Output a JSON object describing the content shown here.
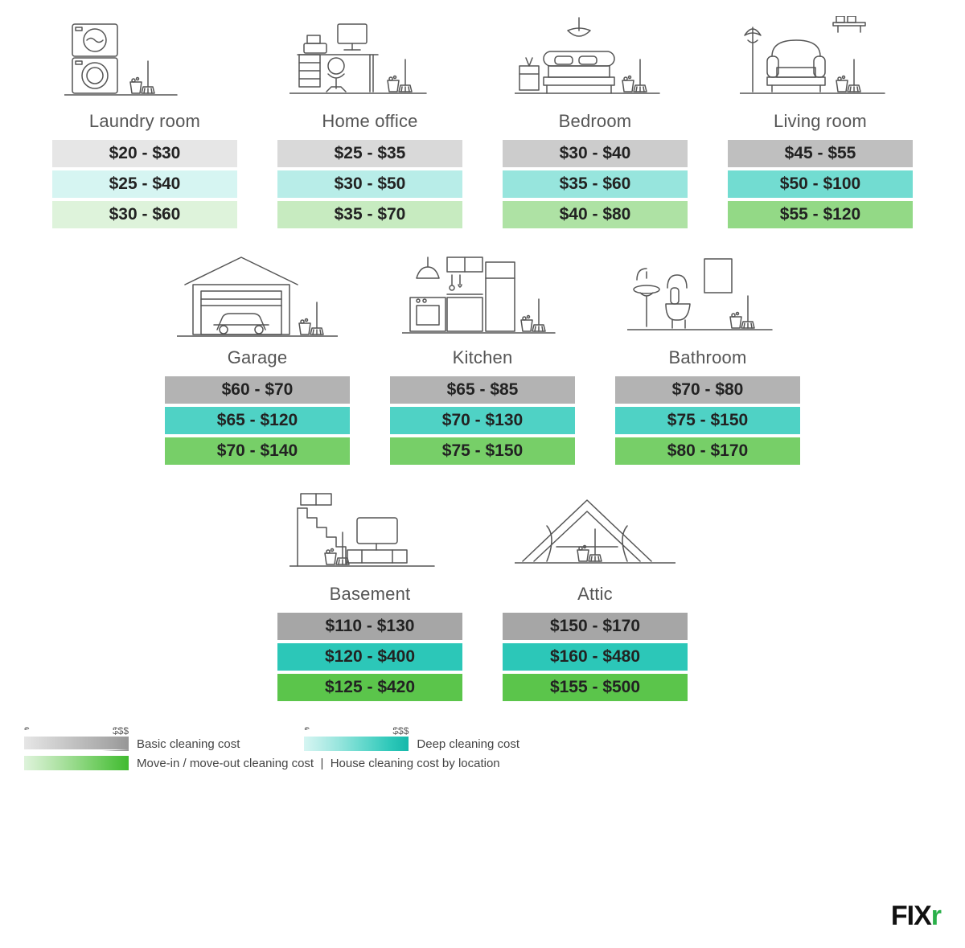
{
  "colors": {
    "basic_scale": [
      "#e6e6e6",
      "#d9d9d9",
      "#cccccc",
      "#bfbfbf",
      "#b3b3b3",
      "#a6a6a6",
      "#969696"
    ],
    "deep_scale": [
      "#d6f5f2",
      "#b8ede8",
      "#97e5dd",
      "#72dcd1",
      "#4fd2c5",
      "#2cc7b8",
      "#16b8aa"
    ],
    "movein_scale": [
      "#def3db",
      "#c7ebc0",
      "#aee2a4",
      "#93d986",
      "#77cf68",
      "#5bc54b",
      "#41bb30"
    ],
    "text": "#222222",
    "label": "#555555",
    "bg": "#ffffff"
  },
  "typography": {
    "label_fontsize": 22,
    "price_fontsize": 21,
    "price_weight": 700,
    "label_weight": 300,
    "legend_fontsize": 15
  },
  "rooms": [
    {
      "id": "laundry",
      "label": "Laundry room",
      "tier": 1,
      "basic": "$20 - $30",
      "deep": "$25 - $40",
      "movein": "$30 - $60"
    },
    {
      "id": "office",
      "label": "Home office",
      "tier": 2,
      "basic": "$25 - $35",
      "deep": "$30 - $50",
      "movein": "$35 - $70"
    },
    {
      "id": "bedroom",
      "label": "Bedroom",
      "tier": 3,
      "basic": "$30 - $40",
      "deep": "$35 - $60",
      "movein": "$40 - $80"
    },
    {
      "id": "living",
      "label": "Living room",
      "tier": 4,
      "basic": "$45 - $55",
      "deep": "$50 - $100",
      "movein": "$55 - $120"
    },
    {
      "id": "garage",
      "label": "Garage",
      "tier": 5,
      "basic": "$60 - $70",
      "deep": "$65 - $120",
      "movein": "$70 - $140"
    },
    {
      "id": "kitchen",
      "label": "Kitchen",
      "tier": 5,
      "basic": "$65 - $85",
      "deep": "$70 - $130",
      "movein": "$75 - $150"
    },
    {
      "id": "bathroom",
      "label": "Bathroom",
      "tier": 5,
      "basic": "$70 - $80",
      "deep": "$75 - $150",
      "movein": "$80 - $170"
    },
    {
      "id": "basement",
      "label": "Basement",
      "tier": 6,
      "basic": "$110 - $130",
      "deep": "$120 - $400",
      "movein": "$125 - $420"
    },
    {
      "id": "attic",
      "label": "Attic",
      "tier": 6,
      "basic": "$150 - $170",
      "deep": "$160 - $480",
      "movein": "$155 - $500"
    }
  ],
  "layout_rows": [
    4,
    3,
    2
  ],
  "legend": {
    "basic": "Basic cleaning cost",
    "deep": "Deep cleaning cost",
    "movein": "Move-in / move-out cleaning cost",
    "tail": "House cleaning cost by location",
    "lo": "$",
    "hi": "$$$"
  },
  "logo": {
    "text": "FIX",
    "accent": "r"
  }
}
